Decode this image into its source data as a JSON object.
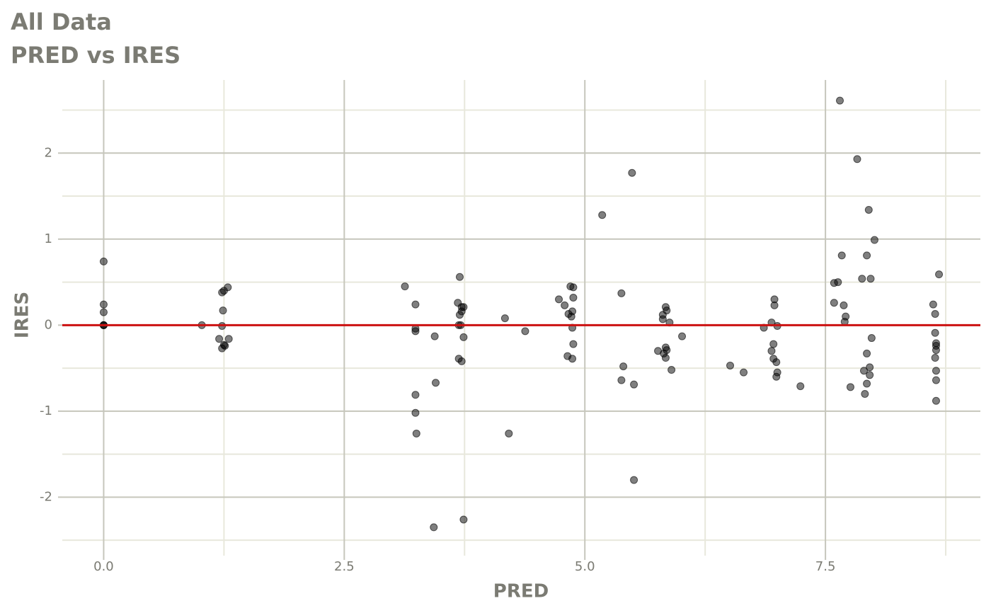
{
  "chart_data": {
    "type": "scatter",
    "title": "All Data",
    "subtitle": "PRED vs IRES",
    "x_label": "PRED",
    "y_label": "IRES",
    "xlim": [
      -0.43,
      9.11
    ],
    "ylim": [
      -2.68,
      2.85
    ],
    "xticks": [
      {
        "value": 0,
        "label": "0.0"
      },
      2.5,
      {
        "value": 5,
        "label": "5.0"
      },
      7.5
    ],
    "yticks": [
      -2,
      -1,
      0,
      1,
      2
    ],
    "x_minor_ticks": [
      1.25,
      3.75,
      6.25,
      8.75
    ],
    "y_minor_ticks": [
      -2.5,
      -1.5,
      -0.5,
      0.5,
      1.5,
      2.5
    ],
    "grid": true,
    "hline": {
      "value": 0,
      "color": "#cc1111"
    },
    "series": [
      {
        "color": "#000000",
        "x": [
          0,
          0,
          0,
          0,
          0,
          0,
          1.02,
          1.23,
          1.25,
          1.29,
          1.24,
          1.23,
          1.2,
          1.3,
          1.23,
          1.25,
          1.26,
          3.13,
          3.24,
          3.24,
          3.24,
          3.24,
          3.24,
          3.25,
          3.44,
          3.45,
          3.43,
          3.68,
          3.7,
          3.72,
          3.74,
          3.7,
          3.72,
          3.69,
          3.71,
          3.74,
          3.69,
          3.72,
          3.74,
          4.17,
          4.21,
          4.38,
          4.73,
          4.79,
          4.85,
          4.88,
          4.88,
          4.83,
          4.87,
          4.86,
          4.87,
          4.88,
          4.82,
          4.87,
          5.18,
          5.49,
          5.38,
          5.4,
          5.38,
          5.51,
          5.51,
          5.84,
          5.85,
          5.81,
          5.81,
          5.88,
          6.01,
          5.76,
          5.84,
          5.85,
          5.82,
          5.84,
          5.9,
          6.51,
          6.65,
          6.86,
          6.94,
          6.97,
          6.97,
          7.0,
          6.96,
          6.94,
          6.96,
          6.99,
          7.0,
          6.99,
          7.24,
          7.65,
          7.83,
          7.95,
          8.01,
          7.67,
          7.93,
          7.59,
          7.63,
          7.88,
          7.97,
          7.59,
          7.69,
          7.71,
          7.7,
          7.98,
          7.93,
          7.96,
          7.9,
          7.96,
          7.76,
          7.93,
          7.91,
          8.68,
          8.62,
          8.64,
          8.64,
          8.65,
          8.65,
          8.65,
          8.64,
          8.65,
          8.65,
          8.65
        ],
        "values": [
          0.74,
          0.24,
          0.15,
          0,
          0,
          0,
          0,
          0.38,
          0.4,
          0.44,
          0.17,
          -0.01,
          -0.16,
          -0.16,
          -0.27,
          -0.23,
          -0.24,
          0.45,
          0.24,
          -0.04,
          -0.07,
          -0.81,
          -1.02,
          -1.26,
          -0.13,
          -0.67,
          -2.35,
          0.26,
          0.56,
          0.21,
          0.21,
          0.12,
          0.16,
          0,
          0,
          -0.14,
          -0.39,
          -0.42,
          -2.26,
          0.08,
          -1.26,
          -0.07,
          0.3,
          0.23,
          0.45,
          0.44,
          0.32,
          0.13,
          0.16,
          0.1,
          -0.03,
          -0.22,
          -0.36,
          -0.39,
          1.28,
          1.77,
          0.37,
          -0.48,
          -0.64,
          -0.69,
          -1.8,
          0.21,
          0.17,
          0.12,
          0.07,
          0.03,
          -0.13,
          -0.3,
          -0.26,
          -0.29,
          -0.33,
          -0.38,
          -0.52,
          -0.47,
          -0.55,
          -0.03,
          0.03,
          0.3,
          0.23,
          -0.01,
          -0.22,
          -0.3,
          -0.39,
          -0.43,
          -0.55,
          -0.6,
          -0.71,
          2.61,
          1.93,
          1.34,
          0.99,
          0.81,
          0.81,
          0.49,
          0.5,
          0.54,
          0.54,
          0.26,
          0.23,
          0.1,
          0.04,
          -0.15,
          -0.33,
          -0.49,
          -0.53,
          -0.58,
          -0.72,
          -0.68,
          -0.8,
          0.59,
          0.24,
          0.13,
          -0.09,
          -0.21,
          -0.24,
          -0.29,
          -0.38,
          -0.53,
          -0.64,
          -0.88
        ]
      }
    ]
  }
}
